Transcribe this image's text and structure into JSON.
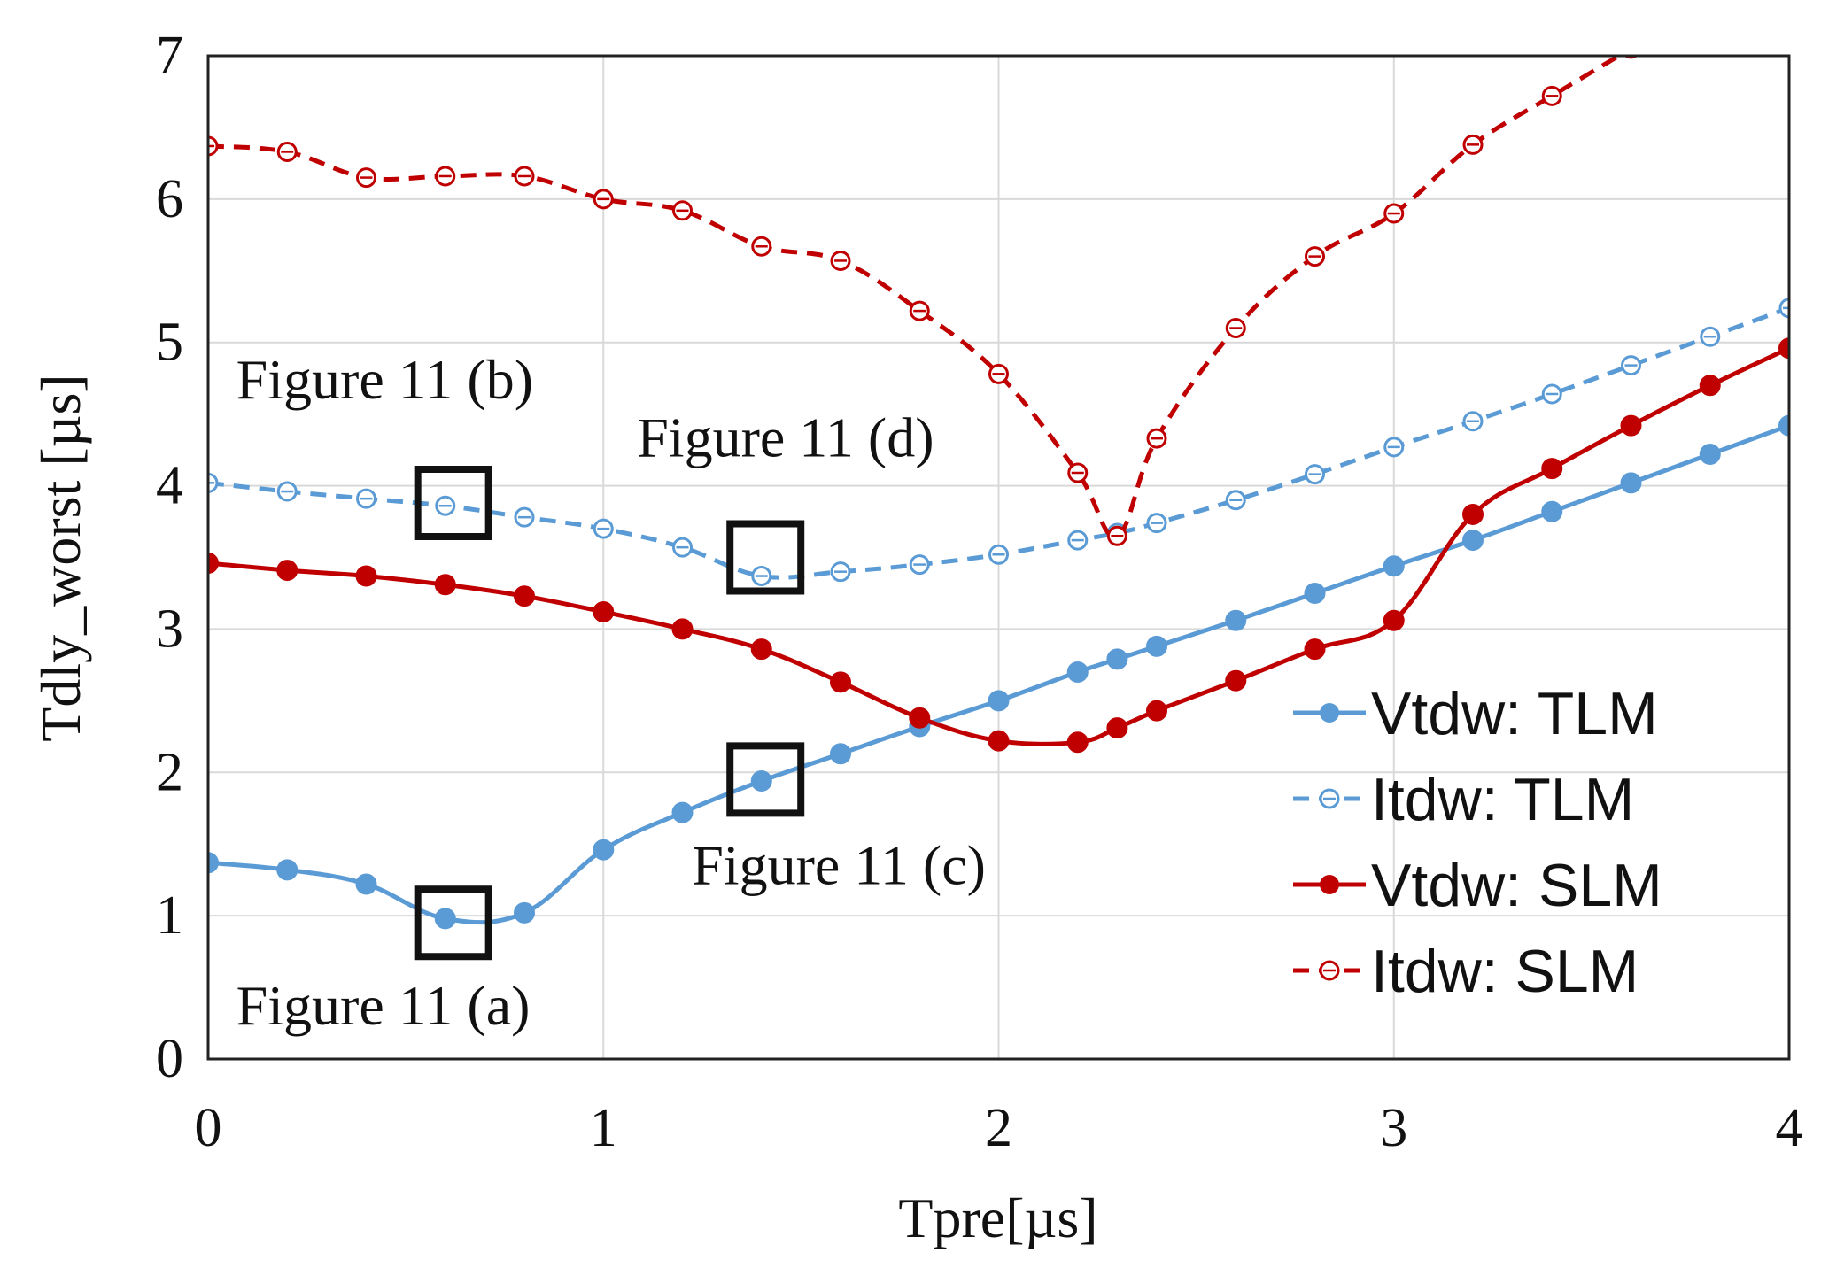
{
  "chart_data": {
    "type": "line",
    "title": "",
    "xlabel": "Tpre[µs]",
    "ylabel": "Tdly_worst [µs]",
    "xlim": [
      0,
      4
    ],
    "ylim": [
      0,
      7
    ],
    "xticks": [
      "0",
      "1",
      "2",
      "3",
      "4"
    ],
    "yticks": [
      "0",
      "1",
      "2",
      "3",
      "4",
      "5",
      "6",
      "7"
    ],
    "grid": true,
    "legend_position": "bottom-right",
    "series": [
      {
        "name": "Vtdw: TLM",
        "color": "#5b9bd5",
        "dash": "solid",
        "marker": "filled-circle",
        "x": [
          0,
          0.2,
          0.4,
          0.6,
          0.8,
          1.0,
          1.2,
          1.4,
          1.6,
          1.8,
          2.0,
          2.2,
          2.3,
          2.4,
          2.6,
          2.8,
          3.0,
          3.2,
          3.4,
          3.6,
          3.8,
          4.0
        ],
        "y": [
          1.37,
          1.32,
          1.22,
          0.98,
          1.02,
          1.46,
          1.72,
          1.94,
          2.13,
          2.32,
          2.5,
          2.7,
          2.79,
          2.88,
          3.06,
          3.25,
          3.44,
          3.62,
          3.82,
          4.02,
          4.22,
          4.42
        ]
      },
      {
        "name": "Itdw: TLM",
        "color": "#5b9bd5",
        "dash": "dashed",
        "marker": "open-circle",
        "x": [
          0,
          0.2,
          0.4,
          0.6,
          0.8,
          1.0,
          1.2,
          1.4,
          1.6,
          1.8,
          2.0,
          2.2,
          2.3,
          2.4,
          2.6,
          2.8,
          3.0,
          3.2,
          3.4,
          3.6,
          3.8,
          4.0
        ],
        "y": [
          4.02,
          3.96,
          3.91,
          3.86,
          3.78,
          3.7,
          3.57,
          3.37,
          3.4,
          3.45,
          3.52,
          3.62,
          3.67,
          3.74,
          3.9,
          4.08,
          4.27,
          4.45,
          4.64,
          4.84,
          5.04,
          5.24
        ]
      },
      {
        "name": "Vtdw: SLM",
        "color": "#c00000",
        "dash": "solid",
        "marker": "filled-circle",
        "x": [
          0,
          0.2,
          0.4,
          0.6,
          0.8,
          1.0,
          1.2,
          1.4,
          1.6,
          1.8,
          2.0,
          2.2,
          2.3,
          2.4,
          2.6,
          2.8,
          3.0,
          3.2,
          3.4,
          3.6,
          3.8,
          4.0
        ],
        "y": [
          3.46,
          3.41,
          3.37,
          3.31,
          3.23,
          3.12,
          3.0,
          2.86,
          2.63,
          2.38,
          2.22,
          2.21,
          2.31,
          2.43,
          2.64,
          2.86,
          3.06,
          3.8,
          4.12,
          4.42,
          4.7,
          4.96
        ]
      },
      {
        "name": "Itdw: SLM",
        "color": "#c00000",
        "dash": "dashed",
        "marker": "open-circle",
        "x": [
          0,
          0.2,
          0.4,
          0.6,
          0.8,
          1.0,
          1.2,
          1.4,
          1.6,
          1.8,
          2.0,
          2.2,
          2.3,
          2.4,
          2.6,
          2.8,
          3.0,
          3.2,
          3.4,
          3.6
        ],
        "y": [
          6.37,
          6.33,
          6.15,
          6.16,
          6.16,
          6.0,
          5.92,
          5.67,
          5.57,
          5.22,
          4.78,
          4.09,
          3.65,
          4.33,
          5.1,
          5.6,
          5.9,
          6.38,
          6.72,
          7.05
        ]
      }
    ],
    "annotations": [
      {
        "text": "Figure 11 (a)",
        "x": 0.62,
        "y": 0.95
      },
      {
        "text": "Figure 11 (b)",
        "x": 0.62,
        "y": 3.88
      },
      {
        "text": "Figure 11 (c)",
        "x": 1.41,
        "y": 1.95
      },
      {
        "text": "Figure 11 (d)",
        "x": 1.41,
        "y": 3.5
      }
    ]
  }
}
